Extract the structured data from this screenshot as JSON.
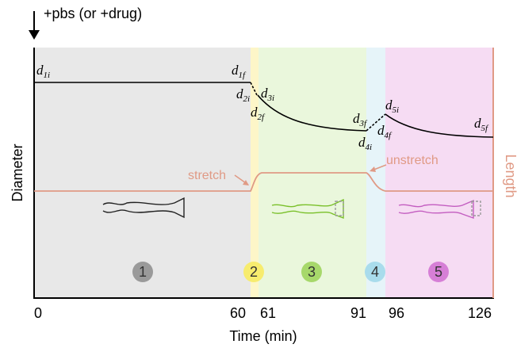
{
  "header": {
    "annotation": "+pbs (or +drug)"
  },
  "axes": {
    "y_label": "Diameter",
    "x_label": "Time (min)",
    "y2_label": "Length",
    "x_ticks": [
      "0",
      "60",
      "61",
      "91",
      "96",
      "126"
    ]
  },
  "annotations": {
    "stretch": "stretch",
    "unstretch": "unstretch"
  },
  "d_labels": [
    {
      "text": "d",
      "sub": "1i"
    },
    {
      "text": "d",
      "sub": "1f"
    },
    {
      "text": "d",
      "sub": "2i"
    },
    {
      "text": "d",
      "sub": "3i"
    },
    {
      "text": "d",
      "sub": "2f"
    },
    {
      "text": "d",
      "sub": "3f"
    },
    {
      "text": "d",
      "sub": "4i"
    },
    {
      "text": "d",
      "sub": "5i"
    },
    {
      "text": "d",
      "sub": "4f"
    },
    {
      "text": "d",
      "sub": "5f"
    }
  ],
  "phases": [
    "1",
    "2",
    "3",
    "4",
    "5"
  ]
}
